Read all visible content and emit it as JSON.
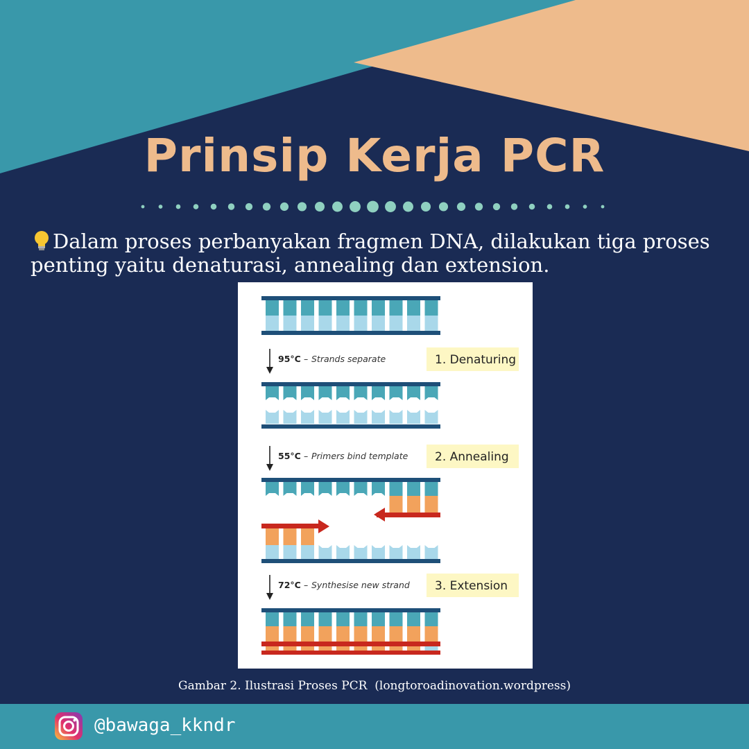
{
  "header": {
    "title": "Prinsip Kerja PCR"
  },
  "intro": {
    "text": "Dalam proses perbanyakan fragmen DNA, dilakukan tiga proses penting yaitu denaturasi, annealing dan extension."
  },
  "figure": {
    "steps": [
      {
        "temp": "95°C",
        "desc": "Strands separate",
        "label": "1. Denaturing"
      },
      {
        "temp": "55°C",
        "desc": "Primers bind template",
        "label": "2. Annealing"
      },
      {
        "temp": "72°C",
        "desc": "Synthesise new strand",
        "label": "3. Extension"
      }
    ],
    "colors": {
      "backbone": "#1e4f78",
      "base_dark": "#4aa7b7",
      "base_light": "#a9d8ea",
      "base_new": "#f2a25c",
      "primer": "#c8281e",
      "label_bg": "#fdf7c4"
    }
  },
  "caption": "Gambar 2. Ilustrasi Proses PCR  (longtoroadinovation.wordpress)",
  "footer": {
    "handle": "@bawaga_kkndr"
  },
  "colors": {
    "navy": "#1a2b54",
    "teal": "#3998aa",
    "peach": "#eebb8c",
    "dots": "#8fd0c0"
  }
}
